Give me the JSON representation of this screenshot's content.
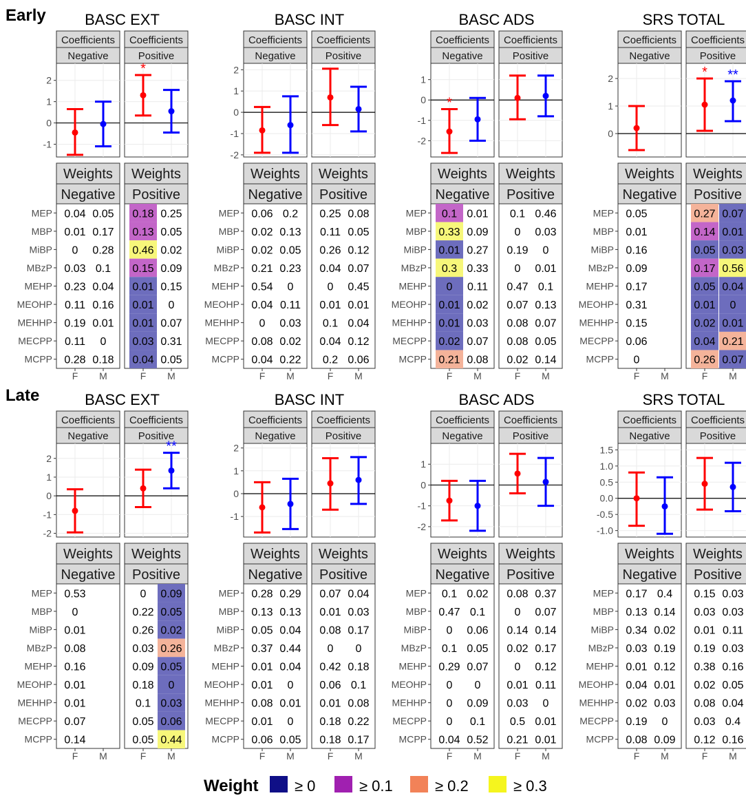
{
  "row_labels": [
    "Early",
    "Late"
  ],
  "panel_titles": [
    "BASC EXT",
    "BASC INT",
    "BASC ADS",
    "SRS TOTAL"
  ],
  "strip_coef": "Coefficients",
  "strip_weights": "Weights",
  "facet_labels": [
    "Negative",
    "Positive"
  ],
  "sex_labels": [
    "F",
    "M"
  ],
  "chemicals": [
    "MEP",
    "MBP",
    "MiBP",
    "MBzP",
    "MEHP",
    "MEOHP",
    "MEHHP",
    "MECPP",
    "MCPP"
  ],
  "legend": {
    "title": "Weight",
    "items": [
      {
        "label": "≥ 0",
        "color": "#0f0f87"
      },
      {
        "label": "≥ 0.1",
        "color": "#a020b0"
      },
      {
        "label": "≥ 0.2",
        "color": "#f28258"
      },
      {
        "label": "≥ 0.3",
        "color": "#f5f51e"
      }
    ]
  },
  "heat_colors": {
    "0": "#6d6dbd",
    "1": "#c366c8",
    "2": "#f4b39a",
    "3": "#f7f77a"
  },
  "series_colors": {
    "F": "#ff0000",
    "M": "#0000ff"
  },
  "chart_data": [
    {
      "type": "errorbar",
      "period": "Early",
      "outcome": "BASC EXT",
      "ylim": [
        -1.6,
        2.8
      ],
      "yticks": [
        -1,
        0,
        1,
        2
      ],
      "coefficients": {
        "Negative": {
          "F": {
            "est": -0.45,
            "lo": -1.5,
            "hi": 0.65,
            "sig": ""
          },
          "M": {
            "est": -0.05,
            "lo": -1.1,
            "hi": 1.0,
            "sig": ""
          }
        },
        "Positive": {
          "F": {
            "est": 1.3,
            "lo": 0.35,
            "hi": 2.25,
            "sig": "*"
          },
          "M": {
            "est": 0.55,
            "lo": -0.45,
            "hi": 1.55,
            "sig": ""
          }
        }
      },
      "weights": {
        "Negative": {
          "F": [
            "0.04",
            "0.01",
            "0",
            "0.03",
            "0.23",
            "0.11",
            "0.19",
            "0.11",
            "0.28"
          ],
          "M": [
            "0.05",
            "0.17",
            "0.28",
            "0.1",
            "0.04",
            "0.16",
            "0.01",
            "0",
            "0.18"
          ]
        },
        "Positive": {
          "F": [
            "0.18",
            "0.13",
            "0.46",
            "0.15",
            "0.01",
            "0.01",
            "0.01",
            "0.03",
            "0.04"
          ],
          "M": [
            "0.25",
            "0.05",
            "0.02",
            "0.09",
            "0.15",
            "0",
            "0.07",
            "0.31",
            "0.05"
          ]
        }
      },
      "highlight": {
        "Positive": "F"
      }
    },
    {
      "type": "errorbar",
      "period": "Early",
      "outcome": "BASC INT",
      "ylim": [
        -2.1,
        2.3
      ],
      "yticks": [
        -2,
        -1,
        0,
        1,
        2
      ],
      "coefficients": {
        "Negative": {
          "F": {
            "est": -0.85,
            "lo": -1.9,
            "hi": 0.25,
            "sig": ""
          },
          "M": {
            "est": -0.6,
            "lo": -1.9,
            "hi": 0.75,
            "sig": ""
          }
        },
        "Positive": {
          "F": {
            "est": 0.7,
            "lo": -0.6,
            "hi": 2.05,
            "sig": ""
          },
          "M": {
            "est": 0.15,
            "lo": -0.9,
            "hi": 1.2,
            "sig": ""
          }
        }
      },
      "weights": {
        "Negative": {
          "F": [
            "0.06",
            "0.02",
            "0.02",
            "0.21",
            "0.54",
            "0.04",
            "0",
            "0.08",
            "0.04"
          ],
          "M": [
            "0.2",
            "0.13",
            "0.05",
            "0.23",
            "0",
            "0.11",
            "0.03",
            "0.02",
            "0.22"
          ]
        },
        "Positive": {
          "F": [
            "0.25",
            "0.11",
            "0.26",
            "0.04",
            "0",
            "0.01",
            "0.1",
            "0.04",
            "0.2"
          ],
          "M": [
            "0.08",
            "0.05",
            "0.12",
            "0.07",
            "0.45",
            "0.01",
            "0.04",
            "0.12",
            "0.06"
          ]
        }
      },
      "highlight": {}
    },
    {
      "type": "errorbar",
      "period": "Early",
      "outcome": "BASC ADS",
      "ylim": [
        -2.8,
        1.8
      ],
      "yticks": [
        -2,
        -1,
        0,
        1
      ],
      "coefficients": {
        "Negative": {
          "F": {
            "est": -1.55,
            "lo": -2.6,
            "hi": -0.45,
            "sig": "*"
          },
          "M": {
            "est": -0.95,
            "lo": -2.0,
            "hi": 0.1,
            "sig": ""
          }
        },
        "Positive": {
          "F": {
            "est": 0.1,
            "lo": -0.95,
            "hi": 1.2,
            "sig": ""
          },
          "M": {
            "est": 0.2,
            "lo": -0.8,
            "hi": 1.2,
            "sig": ""
          }
        }
      },
      "weights": {
        "Negative": {
          "F": [
            "0.1",
            "0.33",
            "0.01",
            "0.3",
            "0",
            "0.01",
            "0.01",
            "0.02",
            "0.21"
          ],
          "M": [
            "0.01",
            "0.09",
            "0.27",
            "0.33",
            "0.11",
            "0.02",
            "0.03",
            "0.07",
            "0.08"
          ]
        },
        "Positive": {
          "F": [
            "0.1",
            "0",
            "0.19",
            "0",
            "0.47",
            "0.07",
            "0.08",
            "0.08",
            "0.02"
          ],
          "M": [
            "0.46",
            "0.03",
            "0",
            "0.01",
            "0.1",
            "0.13",
            "0.07",
            "0.05",
            "0.14"
          ]
        }
      },
      "highlight": {
        "Negative": "F"
      }
    },
    {
      "type": "errorbar",
      "period": "Early",
      "outcome": "SRS TOTAL",
      "ylim": [
        -0.85,
        2.55
      ],
      "yticks": [
        0,
        1,
        2
      ],
      "coefficients": {
        "Negative": {
          "F": {
            "est": 0.2,
            "lo": -0.6,
            "hi": 1.0,
            "sig": ""
          }
        },
        "Positive": {
          "F": {
            "est": 1.05,
            "lo": 0.1,
            "hi": 2.0,
            "sig": "*"
          },
          "M": {
            "est": 1.2,
            "lo": 0.45,
            "hi": 1.9,
            "sig": "**"
          }
        }
      },
      "weights": {
        "Negative": {
          "F": [
            "0.05",
            "0.01",
            "0.16",
            "0.09",
            "0.17",
            "0.31",
            "0.15",
            "0.06",
            "0"
          ]
        },
        "Positive": {
          "F": [
            "0.27",
            "0.14",
            "0.05",
            "0.17",
            "0.05",
            "0.01",
            "0.02",
            "0.04",
            "0.26"
          ],
          "M": [
            "0.07",
            "0.01",
            "0.03",
            "0.56",
            "0.04",
            "0",
            "0.01",
            "0.21",
            "0.07"
          ]
        }
      },
      "highlight": {
        "Positive": "both"
      }
    },
    {
      "type": "errorbar",
      "period": "Late",
      "outcome": "BASC EXT",
      "ylim": [
        -2.2,
        2.8
      ],
      "yticks": [
        -2,
        -1,
        0,
        1,
        2
      ],
      "coefficients": {
        "Negative": {
          "F": {
            "est": -0.8,
            "lo": -1.95,
            "hi": 0.35,
            "sig": ""
          }
        },
        "Positive": {
          "F": {
            "est": 0.4,
            "lo": -0.6,
            "hi": 1.4,
            "sig": ""
          },
          "M": {
            "est": 1.35,
            "lo": 0.4,
            "hi": 2.3,
            "sig": "**"
          }
        }
      },
      "weights": {
        "Negative": {
          "F": [
            "0.53",
            "0",
            "0.01",
            "0.08",
            "0.16",
            "0.01",
            "0.01",
            "0.07",
            "0.14"
          ]
        },
        "Positive": {
          "F": [
            "0",
            "0.22",
            "0.26",
            "0.03",
            "0.09",
            "0.18",
            "0.1",
            "0.05",
            "0.05"
          ],
          "M": [
            "0.09",
            "0.05",
            "0.02",
            "0.26",
            "0.05",
            "0",
            "0.03",
            "0.06",
            "0.44"
          ]
        }
      },
      "highlight": {
        "Positive": "M"
      }
    },
    {
      "type": "errorbar",
      "period": "Late",
      "outcome": "BASC INT",
      "ylim": [
        -1.9,
        2.2
      ],
      "yticks": [
        -1,
        0,
        1,
        2
      ],
      "coefficients": {
        "Negative": {
          "F": {
            "est": -0.6,
            "lo": -1.7,
            "hi": 0.5,
            "sig": ""
          },
          "M": {
            "est": -0.45,
            "lo": -1.55,
            "hi": 0.65,
            "sig": ""
          }
        },
        "Positive": {
          "F": {
            "est": 0.45,
            "lo": -0.7,
            "hi": 1.55,
            "sig": ""
          },
          "M": {
            "est": 0.6,
            "lo": -0.45,
            "hi": 1.6,
            "sig": ""
          }
        }
      },
      "weights": {
        "Negative": {
          "F": [
            "0.28",
            "0.13",
            "0.05",
            "0.37",
            "0.01",
            "0.01",
            "0.08",
            "0.01",
            "0.06"
          ],
          "M": [
            "0.29",
            "0.13",
            "0.04",
            "0.44",
            "0.04",
            "0",
            "0.01",
            "0",
            "0.05"
          ]
        },
        "Positive": {
          "F": [
            "0.07",
            "0.01",
            "0.08",
            "0",
            "0.42",
            "0.06",
            "0.01",
            "0.18",
            "0.18"
          ],
          "M": [
            "0.04",
            "0.03",
            "0.17",
            "0",
            "0.18",
            "0.1",
            "0.08",
            "0.22",
            "0.17"
          ]
        }
      },
      "highlight": {}
    },
    {
      "type": "errorbar",
      "period": "Late",
      "outcome": "BASC ADS",
      "ylim": [
        -2.5,
        2.0
      ],
      "yticks": [
        -2,
        -1,
        0,
        1
      ],
      "coefficients": {
        "Negative": {
          "F": {
            "est": -0.75,
            "lo": -1.7,
            "hi": 0.2,
            "sig": ""
          },
          "M": {
            "est": -1.0,
            "lo": -2.2,
            "hi": 0.2,
            "sig": ""
          }
        },
        "Positive": {
          "F": {
            "est": 0.55,
            "lo": -0.4,
            "hi": 1.5,
            "sig": ""
          },
          "M": {
            "est": 0.15,
            "lo": -1.0,
            "hi": 1.3,
            "sig": ""
          }
        }
      },
      "weights": {
        "Negative": {
          "F": [
            "0.1",
            "0.47",
            "0",
            "0.1",
            "0.29",
            "0",
            "0",
            "0",
            "0.04"
          ],
          "M": [
            "0.02",
            "0.1",
            "0.06",
            "0.05",
            "0.07",
            "0",
            "0.09",
            "0.1",
            "0.52"
          ]
        },
        "Positive": {
          "F": [
            "0.08",
            "0",
            "0.14",
            "0.02",
            "0",
            "0.01",
            "0.03",
            "0.5",
            "0.21"
          ],
          "M": [
            "0.37",
            "0.07",
            "0.14",
            "0.17",
            "0.12",
            "0.11",
            "0",
            "0.01",
            "0.01"
          ]
        }
      },
      "highlight": {}
    },
    {
      "type": "errorbar",
      "period": "Late",
      "outcome": "SRS TOTAL",
      "ylim": [
        -1.2,
        1.7
      ],
      "yticks": [
        -1.0,
        -0.5,
        0.0,
        0.5,
        1.0,
        1.5
      ],
      "coefficients": {
        "Negative": {
          "F": {
            "est": 0.0,
            "lo": -0.85,
            "hi": 0.8,
            "sig": ""
          },
          "M": {
            "est": -0.25,
            "lo": -1.1,
            "hi": 0.65,
            "sig": ""
          }
        },
        "Positive": {
          "F": {
            "est": 0.45,
            "lo": -0.35,
            "hi": 1.25,
            "sig": ""
          },
          "M": {
            "est": 0.35,
            "lo": -0.4,
            "hi": 1.1,
            "sig": ""
          }
        }
      },
      "weights": {
        "Negative": {
          "F": [
            "0.17",
            "0.13",
            "0.34",
            "0.03",
            "0.01",
            "0.04",
            "0.02",
            "0.19",
            "0.08"
          ],
          "M": [
            "0.4",
            "0.14",
            "0.02",
            "0.19",
            "0.12",
            "0.01",
            "0.03",
            "0",
            "0.09"
          ]
        },
        "Positive": {
          "F": [
            "0.15",
            "0.03",
            "0.01",
            "0.19",
            "0.38",
            "0.02",
            "0.08",
            "0.03",
            "0.12"
          ],
          "M": [
            "0.03",
            "0.03",
            "0.11",
            "0.03",
            "0.16",
            "0.05",
            "0.04",
            "0.4",
            "0.16"
          ]
        }
      },
      "highlight": {}
    }
  ]
}
